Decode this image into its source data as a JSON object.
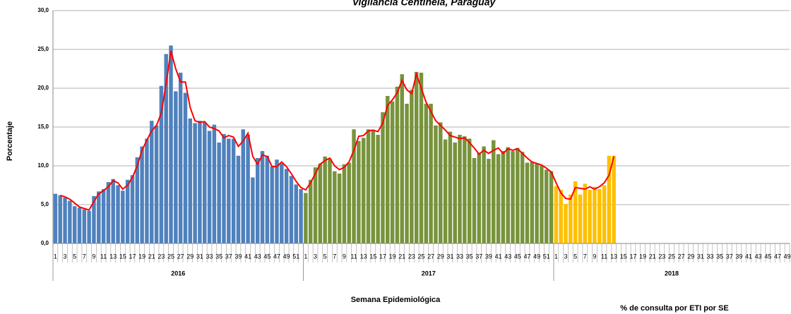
{
  "chart_data": {
    "type": "bar",
    "title": "Vigilancia Centinela, Paraguay",
    "xlabel": "Semana Epidemiológica",
    "ylabel": "Porcentaje",
    "note": "% de consulta por ETI  por  SE",
    "ylim": [
      0,
      30
    ],
    "yticks": [
      {
        "value": 0,
        "label": "0,0"
      },
      {
        "value": 5,
        "label": "5,0"
      },
      {
        "value": 10,
        "label": "10,0"
      },
      {
        "value": 15,
        "label": "15,0"
      },
      {
        "value": 20,
        "label": "20,0"
      },
      {
        "value": 25,
        "label": "25,0"
      },
      {
        "value": 30,
        "label": "30,0"
      }
    ],
    "grid": true,
    "trend_color": "#ff0000",
    "groups": [
      {
        "name": "2016",
        "color": "#4f81bd",
        "categories": [
          "1",
          null,
          "3",
          null,
          "5",
          null,
          "7",
          null,
          "9",
          null,
          "11",
          null,
          "13",
          null,
          "15",
          null,
          "17",
          null,
          "19",
          null,
          "21",
          null,
          "23",
          null,
          "25",
          null,
          "27",
          null,
          "29",
          null,
          "31",
          null,
          "33",
          null,
          "35",
          null,
          "37",
          null,
          "39",
          null,
          "41",
          null,
          "43",
          null,
          "45",
          null,
          "47",
          null,
          "49",
          null,
          "51",
          null
        ],
        "values": [
          6.4,
          6.2,
          5.9,
          5.5,
          4.8,
          4.6,
          4.4,
          4.2,
          6.1,
          6.7,
          7.0,
          7.9,
          8.3,
          7.5,
          6.8,
          8.2,
          8.8,
          11.1,
          12.5,
          13.5,
          15.8,
          15.2,
          20.3,
          24.4,
          25.5,
          19.6,
          22.0,
          19.4,
          16.1,
          15.5,
          15.8,
          15.6,
          14.5,
          15.3,
          13.0,
          14.1,
          13.5,
          13.5,
          11.3,
          14.7,
          14.0,
          8.5,
          11.0,
          11.9,
          11.3,
          9.9,
          10.8,
          10.3,
          9.6,
          8.7,
          7.6,
          7.0
        ],
        "trend": [
          null,
          6.2,
          6.0,
          5.7,
          5.2,
          4.7,
          4.5,
          4.3,
          5.4,
          6.4,
          6.8,
          7.3,
          8.1,
          7.8,
          7.0,
          7.5,
          8.5,
          10.0,
          12.0,
          13.3,
          14.5,
          15.2,
          16.8,
          20.6,
          24.8,
          22.5,
          20.8,
          20.8,
          17.5,
          15.8,
          15.6,
          15.7,
          15.0,
          14.8,
          14.5,
          13.6,
          13.9,
          13.7,
          12.5,
          13.2,
          14.2,
          11.2,
          10.2,
          11.4,
          11.2,
          9.9,
          9.9,
          10.5,
          9.9,
          9.0,
          8.0,
          7.2
        ]
      },
      {
        "name": "2017",
        "color": "#77933c",
        "categories": [
          "1",
          null,
          "3",
          null,
          "5",
          null,
          "7",
          null,
          "9",
          null,
          "11",
          null,
          "13",
          null,
          "15",
          null,
          "17",
          null,
          "19",
          null,
          "21",
          null,
          "23",
          null,
          "25",
          null,
          "27",
          null,
          "29",
          null,
          "31",
          null,
          "33",
          null,
          "35",
          null,
          "37",
          null,
          "39",
          null,
          "41",
          null,
          "43",
          null,
          "45",
          null,
          "47",
          null,
          "49",
          null,
          "51",
          null
        ],
        "values": [
          6.5,
          8.2,
          9.8,
          10.3,
          11.2,
          10.9,
          9.3,
          9.0,
          10.2,
          10.4,
          14.7,
          13.2,
          13.6,
          14.7,
          14.5,
          14.0,
          16.9,
          19.0,
          18.3,
          20.2,
          21.8,
          18.0,
          19.8,
          22.1,
          22.0,
          18.0,
          18.0,
          15.2,
          15.6,
          13.4,
          14.4,
          13.0,
          14.0,
          13.8,
          13.5,
          11.0,
          11.7,
          12.5,
          10.9,
          13.3,
          11.5,
          11.9,
          12.4,
          11.9,
          12.3,
          11.8,
          10.4,
          10.5,
          10.3,
          10.0,
          9.5,
          9.3
        ],
        "trend": [
          6.9,
          7.8,
          9.0,
          10.2,
          10.7,
          11.0,
          10.0,
          9.5,
          9.8,
          10.5,
          12.0,
          13.8,
          13.9,
          14.5,
          14.6,
          14.4,
          15.5,
          17.8,
          18.5,
          19.4,
          21.0,
          19.8,
          19.3,
          21.8,
          20.0,
          18.2,
          17.0,
          15.8,
          15.2,
          14.6,
          13.9,
          13.7,
          13.5,
          13.6,
          13.0,
          12.3,
          11.5,
          12.0,
          11.6,
          12.0,
          12.3,
          11.6,
          12.2,
          12.0,
          12.2,
          11.6,
          11.0,
          10.5,
          10.3,
          10.1,
          9.7,
          9.2
        ]
      },
      {
        "name": "2018",
        "color": "#ffc000",
        "categories": [
          "1",
          null,
          "3",
          null,
          "5",
          null,
          "7",
          null,
          "9",
          null,
          "11",
          null,
          "13",
          null,
          "15",
          null,
          "17",
          null,
          "19",
          null,
          "21",
          null,
          "23",
          null,
          "25",
          null,
          "27",
          null,
          "29",
          null,
          "31",
          null,
          "33",
          null,
          "35",
          null,
          "37",
          null,
          "39",
          null,
          "41",
          null,
          "43",
          null,
          "45",
          null,
          "47",
          null,
          "49"
        ],
        "values": [
          7.4,
          6.9,
          5.1,
          6.3,
          8.0,
          6.3,
          7.7,
          6.9,
          7.3,
          7.0,
          7.5,
          11.3,
          11.3,
          null,
          null,
          null,
          null,
          null,
          null,
          null,
          null,
          null,
          null,
          null,
          null,
          null,
          null,
          null,
          null,
          null,
          null,
          null,
          null,
          null,
          null,
          null,
          null,
          null,
          null,
          null,
          null,
          null,
          null,
          null,
          null,
          null,
          null,
          null,
          null
        ],
        "trend": [
          7.8,
          6.5,
          5.8,
          5.7,
          7.2,
          7.1,
          7.0,
          7.3,
          7.0,
          7.3,
          7.8,
          8.8,
          11.2,
          null,
          null,
          null,
          null,
          null,
          null,
          null,
          null,
          null,
          null,
          null,
          null,
          null,
          null,
          null,
          null,
          null,
          null,
          null,
          null,
          null,
          null,
          null,
          null,
          null,
          null,
          null,
          null,
          null,
          null,
          null,
          null,
          null,
          null,
          null,
          null
        ]
      }
    ]
  }
}
